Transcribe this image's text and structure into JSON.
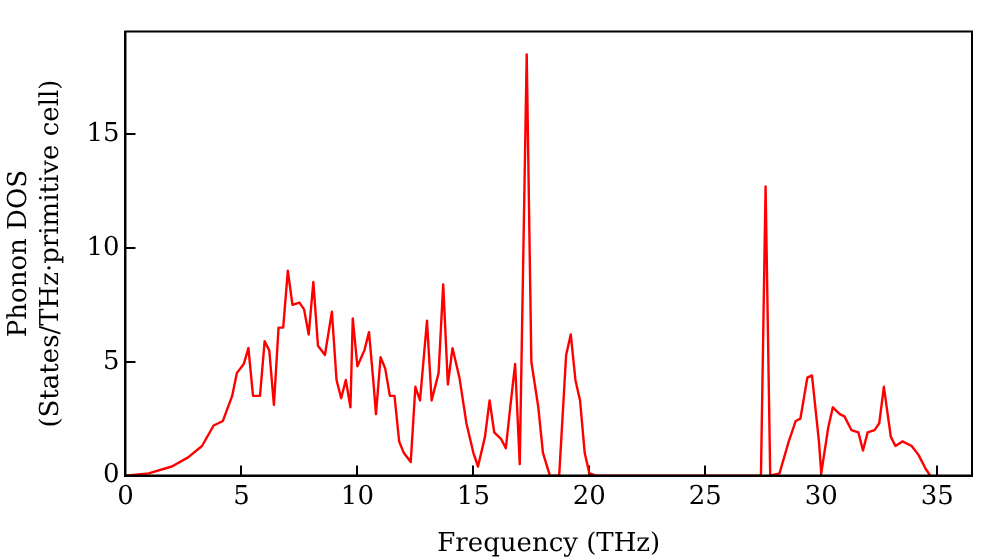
{
  "chart_data": {
    "type": "line",
    "xlabel": "Frequency (THz)",
    "ylabel": "Phonon DOS\n(States/THz·primitive cell)",
    "xlim": [
      0,
      36.5
    ],
    "xticks": [
      0,
      5,
      10,
      15,
      20,
      25,
      30,
      35
    ],
    "ylim": [
      0,
      19.5
    ],
    "yticks": [
      0,
      5,
      10,
      15
    ],
    "grid": false,
    "legend": false,
    "marker": "none",
    "line_style": "solid",
    "series": [
      {
        "color": "#ff0000",
        "x": [
          0,
          1,
          2,
          2.7,
          3.3,
          3.8,
          4.2,
          4.6,
          4.8,
          5.1,
          5.3,
          5.5,
          5.8,
          6.0,
          6.2,
          6.4,
          6.6,
          6.8,
          7.0,
          7.2,
          7.5,
          7.7,
          7.9,
          8.1,
          8.3,
          8.6,
          8.9,
          9.1,
          9.3,
          9.5,
          9.7,
          9.8,
          10.0,
          10.3,
          10.5,
          10.7,
          10.8,
          11.0,
          11.2,
          11.4,
          11.6,
          11.8,
          12.0,
          12.3,
          12.5,
          12.7,
          13.0,
          13.2,
          13.5,
          13.7,
          13.9,
          14.1,
          14.4,
          14.7,
          15.0,
          15.2,
          15.5,
          15.7,
          15.9,
          16.2,
          16.4,
          16.6,
          16.8,
          17.0,
          17.3,
          17.5,
          17.8,
          18.0,
          18.3,
          18.7,
          19.0,
          19.2,
          19.4,
          19.6,
          19.8,
          20.0,
          20.3,
          27.0,
          27.4,
          27.6,
          27.8,
          28.2,
          28.6,
          28.9,
          29.1,
          29.4,
          29.6,
          29.9,
          30.0,
          30.3,
          30.5,
          30.8,
          31.0,
          31.3,
          31.6,
          31.8,
          32.0,
          32.3,
          32.5,
          32.7,
          33.0,
          33.2,
          33.5,
          33.9,
          34.2,
          34.5,
          34.7
        ],
        "values": [
          0,
          0.1,
          0.4,
          0.8,
          1.3,
          2.2,
          2.4,
          3.5,
          4.5,
          4.9,
          5.6,
          3.5,
          3.5,
          5.9,
          5.5,
          3.1,
          6.5,
          6.5,
          9.0,
          7.5,
          7.6,
          7.3,
          6.2,
          8.5,
          5.7,
          5.3,
          7.2,
          4.2,
          3.4,
          4.2,
          3.0,
          6.9,
          4.8,
          5.5,
          6.3,
          4.0,
          2.7,
          5.2,
          4.7,
          3.5,
          3.5,
          1.5,
          1.0,
          0.6,
          3.9,
          3.3,
          6.8,
          3.3,
          4.5,
          8.4,
          4.0,
          5.6,
          4.3,
          2.3,
          1.0,
          0.4,
          1.7,
          3.3,
          1.9,
          1.6,
          1.2,
          3.1,
          4.9,
          0.5,
          18.5,
          5.0,
          3.0,
          1.0,
          0,
          0,
          5.3,
          6.2,
          4.2,
          3.3,
          1.0,
          0.1,
          0,
          0,
          0,
          12.7,
          0,
          0.1,
          1.5,
          2.4,
          2.5,
          4.3,
          4.4,
          1.5,
          0.1,
          2.1,
          3.0,
          2.7,
          2.6,
          2.0,
          1.9,
          1.1,
          1.9,
          2.0,
          2.3,
          3.9,
          1.7,
          1.3,
          1.5,
          1.3,
          0.9,
          0.3,
          0
        ]
      }
    ]
  }
}
